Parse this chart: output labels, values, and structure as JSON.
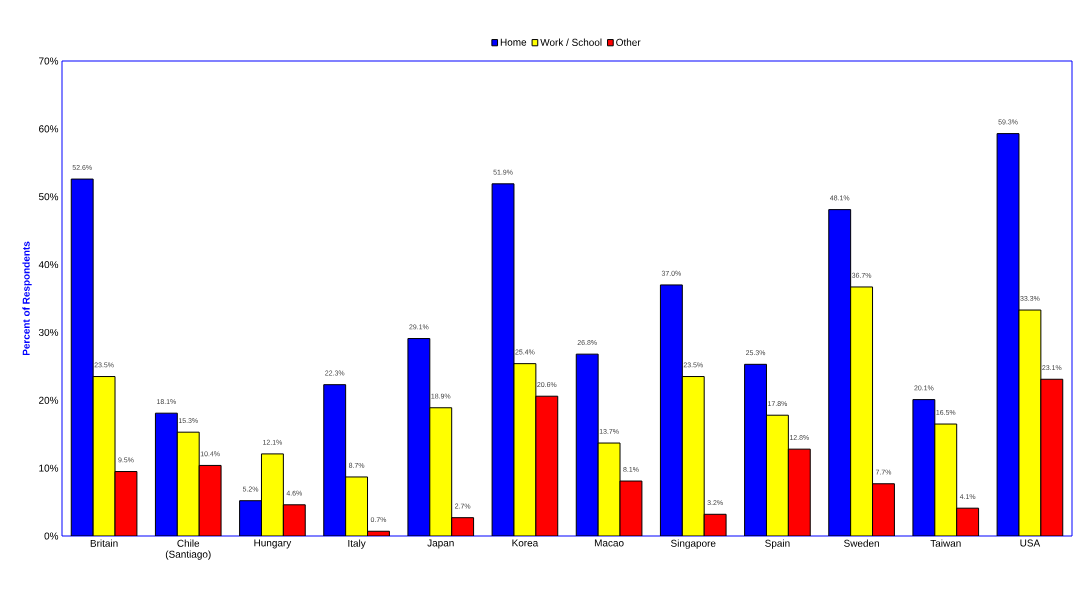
{
  "chart_data": {
    "type": "bar",
    "ylabel": "Percent of Respondents",
    "categories": [
      "Britain",
      "Chile (Santiago)",
      "Hungary",
      "Italy",
      "Japan",
      "Korea",
      "Macao",
      "Singapore",
      "Spain",
      "Sweden",
      "Taiwan",
      "USA"
    ],
    "series": [
      {
        "name": "Home",
        "color": "#0000ff",
        "values": [
          52.6,
          18.1,
          5.2,
          22.3,
          29.1,
          51.9,
          26.8,
          37.0,
          25.3,
          48.1,
          20.1,
          59.3
        ],
        "value_labels": [
          "52.6%",
          "18.1%",
          "5.2%",
          "22.3%",
          "29.1%",
          "51.9%",
          "26.8%",
          "37.0%",
          "25.3%",
          "48.1%",
          "20.1%",
          "59.3%"
        ]
      },
      {
        "name": "Work / School",
        "color": "#ffff00",
        "values": [
          23.5,
          15.3,
          12.1,
          8.7,
          18.9,
          25.4,
          13.7,
          23.5,
          17.8,
          36.7,
          16.5,
          33.3
        ],
        "value_labels": [
          "23.5%",
          "15.3%",
          "12.1%",
          "8.7%",
          "18.9%",
          "25.4%",
          "13.7%",
          "23.5%",
          "17.8%",
          "36.7%",
          "16.5%",
          "33.3%"
        ]
      },
      {
        "name": "Other",
        "color": "#ff0000",
        "values": [
          9.5,
          10.4,
          4.6,
          0.7,
          2.7,
          20.6,
          8.1,
          3.2,
          12.8,
          7.7,
          4.1,
          23.1
        ],
        "value_labels": [
          "9.5%",
          "10.4%",
          "4.6%",
          "0.7%",
          "2.7%",
          "20.6%",
          "8.1%",
          "3.2%",
          "12.8%",
          "7.7%",
          "4.1%",
          "23.1%"
        ]
      }
    ],
    "ylim": [
      0,
      70
    ],
    "yticks": [
      {
        "value": 0,
        "label": "0%"
      },
      {
        "value": 10,
        "label": "10%"
      },
      {
        "value": 20,
        "label": "20%"
      },
      {
        "value": 30,
        "label": "30%"
      },
      {
        "value": 40,
        "label": "40%"
      },
      {
        "value": 50,
        "label": "50%"
      },
      {
        "value": 60,
        "label": "60%"
      },
      {
        "value": 70,
        "label": "70%"
      }
    ],
    "legend": "top"
  }
}
